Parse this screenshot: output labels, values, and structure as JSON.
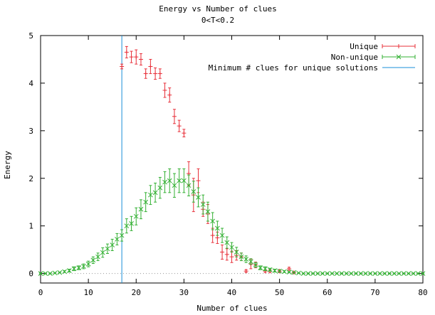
{
  "chart_data": {
    "type": "scatter",
    "title": "Energy vs Number of clues",
    "subtitle": "0<T<0.2",
    "xlabel": "Number of clues",
    "ylabel": "Energy",
    "xlim": [
      0,
      80
    ],
    "ylim": [
      -0.2,
      5
    ],
    "x_ticks": [
      "0",
      "10",
      "20",
      "30",
      "40",
      "50",
      "60",
      "70",
      "80"
    ],
    "y_ticks": [
      "0",
      "1",
      "2",
      "3",
      "4",
      "5"
    ],
    "legend_position": "top-right",
    "zero_line": true,
    "vline": {
      "x": 17,
      "name": "Minimum # clues for unique solutions",
      "color": "#1a8fd8"
    },
    "series": [
      {
        "name": "Unique",
        "color": "#e8303a",
        "marker": "plus",
        "points": [
          [
            17,
            4.35,
            0.05
          ],
          [
            18,
            4.65,
            0.12
          ],
          [
            19,
            4.55,
            0.12
          ],
          [
            20,
            4.55,
            0.15
          ],
          [
            21,
            4.5,
            0.12
          ],
          [
            22,
            4.2,
            0.1
          ],
          [
            23,
            4.35,
            0.15
          ],
          [
            24,
            4.2,
            0.12
          ],
          [
            25,
            4.2,
            0.1
          ],
          [
            26,
            3.85,
            0.15
          ],
          [
            27,
            3.75,
            0.15
          ],
          [
            28,
            3.3,
            0.15
          ],
          [
            29,
            3.1,
            0.12
          ],
          [
            30,
            2.95,
            0.08
          ],
          [
            31,
            2.1,
            0.25
          ],
          [
            32,
            1.65,
            0.35
          ],
          [
            33,
            1.95,
            0.25
          ],
          [
            34,
            1.35,
            0.15
          ],
          [
            35,
            1.25,
            0.2
          ],
          [
            36,
            0.8,
            0.15
          ],
          [
            37,
            0.75,
            0.12
          ],
          [
            38,
            0.45,
            0.15
          ],
          [
            39,
            0.4,
            0.12
          ],
          [
            40,
            0.35,
            0.12
          ],
          [
            41,
            0.38,
            0.1
          ],
          [
            42,
            0.35,
            0.08
          ],
          [
            43,
            0.05,
            0.03
          ],
          [
            44,
            0.2,
            0.1
          ],
          [
            45,
            0.18,
            0.06
          ],
          [
            47,
            0.05,
            0.03
          ],
          [
            48,
            0.05,
            0.03
          ],
          [
            50,
            0.05,
            0.03
          ],
          [
            52,
            0.1,
            0.03
          ],
          [
            53,
            0.02,
            0.02
          ]
        ]
      },
      {
        "name": "Non-unique",
        "color": "#33b033",
        "marker": "x",
        "points": [
          [
            0,
            0.0,
            0.01
          ],
          [
            1,
            0.0,
            0.01
          ],
          [
            2,
            0.0,
            0.01
          ],
          [
            3,
            0.01,
            0.01
          ],
          [
            4,
            0.02,
            0.01
          ],
          [
            5,
            0.04,
            0.02
          ],
          [
            6,
            0.06,
            0.03
          ],
          [
            7,
            0.1,
            0.04
          ],
          [
            8,
            0.12,
            0.04
          ],
          [
            9,
            0.15,
            0.05
          ],
          [
            10,
            0.2,
            0.06
          ],
          [
            11,
            0.28,
            0.07
          ],
          [
            12,
            0.35,
            0.08
          ],
          [
            13,
            0.44,
            0.1
          ],
          [
            14,
            0.52,
            0.1
          ],
          [
            15,
            0.6,
            0.12
          ],
          [
            16,
            0.72,
            0.12
          ],
          [
            17,
            0.8,
            0.12
          ],
          [
            18,
            1.0,
            0.15
          ],
          [
            19,
            1.05,
            0.15
          ],
          [
            20,
            1.2,
            0.18
          ],
          [
            21,
            1.35,
            0.2
          ],
          [
            22,
            1.5,
            0.2
          ],
          [
            23,
            1.65,
            0.2
          ],
          [
            24,
            1.7,
            0.2
          ],
          [
            25,
            1.8,
            0.22
          ],
          [
            26,
            1.92,
            0.22
          ],
          [
            27,
            1.95,
            0.25
          ],
          [
            28,
            1.85,
            0.25
          ],
          [
            29,
            1.95,
            0.25
          ],
          [
            30,
            1.95,
            0.25
          ],
          [
            31,
            1.85,
            0.22
          ],
          [
            32,
            1.72,
            0.22
          ],
          [
            33,
            1.6,
            0.2
          ],
          [
            34,
            1.45,
            0.2
          ],
          [
            35,
            1.3,
            0.2
          ],
          [
            36,
            1.1,
            0.18
          ],
          [
            37,
            0.95,
            0.15
          ],
          [
            38,
            0.8,
            0.15
          ],
          [
            39,
            0.65,
            0.12
          ],
          [
            40,
            0.55,
            0.1
          ],
          [
            41,
            0.45,
            0.1
          ],
          [
            42,
            0.35,
            0.08
          ],
          [
            43,
            0.3,
            0.07
          ],
          [
            44,
            0.25,
            0.06
          ],
          [
            45,
            0.18,
            0.05
          ],
          [
            46,
            0.12,
            0.04
          ],
          [
            47,
            0.1,
            0.04
          ],
          [
            48,
            0.08,
            0.03
          ],
          [
            49,
            0.06,
            0.03
          ],
          [
            50,
            0.05,
            0.02
          ],
          [
            51,
            0.04,
            0.02
          ],
          [
            52,
            0.03,
            0.01
          ],
          [
            53,
            0.02,
            0.01
          ],
          [
            54,
            0.01,
            0.01
          ],
          [
            55,
            0.0,
            0.01
          ],
          [
            56,
            0.0,
            0.01
          ],
          [
            57,
            0.0,
            0.01
          ],
          [
            58,
            0.0,
            0.01
          ],
          [
            59,
            0.0,
            0.01
          ],
          [
            60,
            0.0,
            0.01
          ],
          [
            61,
            0.0,
            0.01
          ],
          [
            62,
            0.0,
            0.01
          ],
          [
            63,
            0.0,
            0.01
          ],
          [
            64,
            0.0,
            0.01
          ],
          [
            65,
            0.0,
            0.01
          ],
          [
            66,
            0.0,
            0.01
          ],
          [
            67,
            0.0,
            0.01
          ],
          [
            68,
            0.0,
            0.01
          ],
          [
            69,
            0.0,
            0.01
          ],
          [
            70,
            0.0,
            0.01
          ],
          [
            71,
            0.0,
            0.01
          ],
          [
            72,
            0.0,
            0.01
          ],
          [
            73,
            0.0,
            0.01
          ],
          [
            74,
            0.0,
            0.01
          ],
          [
            75,
            0.0,
            0.01
          ],
          [
            76,
            0.0,
            0.01
          ],
          [
            77,
            0.0,
            0.01
          ],
          [
            78,
            0.0,
            0.01
          ],
          [
            79,
            0.0,
            0.01
          ],
          [
            80,
            0.0,
            0.01
          ]
        ]
      }
    ]
  }
}
